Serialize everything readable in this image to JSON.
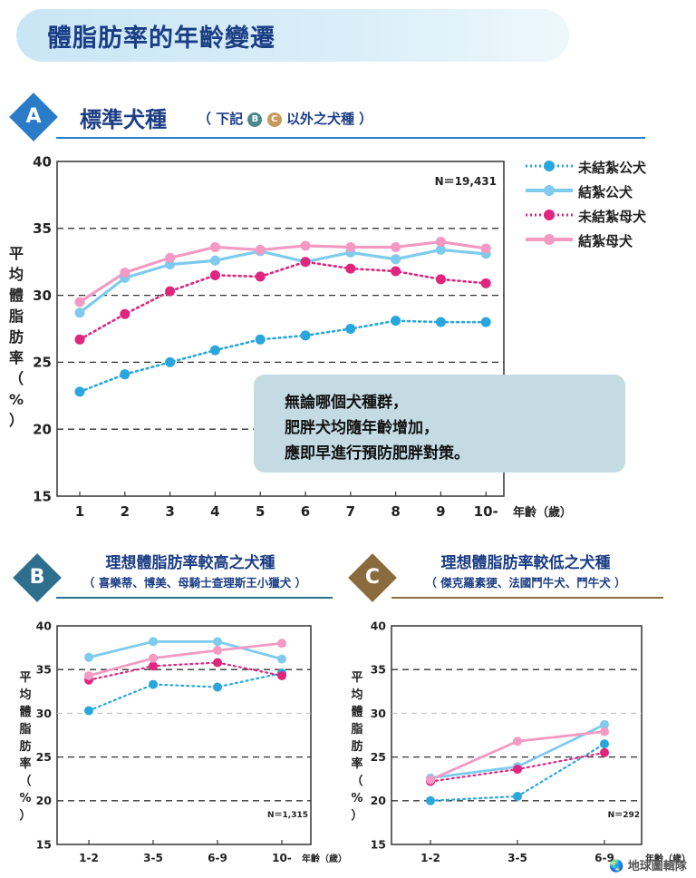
{
  "header": {
    "title": "體脂肪率的年齡變遷"
  },
  "section_a": {
    "badge": "A",
    "title": "標準犬種",
    "subtitle_prefix": "（ 下記",
    "badge_b": "B",
    "badge_c": "C",
    "subtitle_suffix": "以外之犬種 ）",
    "callout": [
      "無論哪個犬種群，",
      "肥胖犬均隨年齡增加，",
      "應即早進行預防肥胖對策。"
    ]
  },
  "section_b": {
    "badge": "B",
    "title": "理想體脂肪率較高之犬種",
    "subtitle": "（ 喜樂蒂、博美、母騎士查理斯王小獵犬 ）"
  },
  "section_c": {
    "badge": "C",
    "title": "理想體脂肪率較低之犬種",
    "subtitle": "（ 傑克羅素㹴、法國鬥牛犬、鬥牛犬 ）"
  },
  "ylabel_chars": [
    "平",
    "均",
    "體",
    "脂",
    "肪",
    "率",
    "（",
    "%",
    "）"
  ],
  "watermark": "地球圖輯隊",
  "series_styles": [
    {
      "name": "未結紮公犬",
      "color": "#2aa6de",
      "dashed": true
    },
    {
      "name": "結紮公犬",
      "color": "#7fcbee",
      "dashed": false
    },
    {
      "name": "未結紮母犬",
      "color": "#e0257f",
      "dashed": true
    },
    {
      "name": "結紮母犬",
      "color": "#f49ac2",
      "dashed": false
    }
  ],
  "chart_data": [
    {
      "type": "line",
      "id": "A",
      "categories": [
        "1",
        "2",
        "3",
        "4",
        "5",
        "6",
        "7",
        "8",
        "9",
        "10-"
      ],
      "xlabel": "年齡（歲）",
      "ylabel": "平均體脂肪率（%）",
      "ylim": [
        15,
        40
      ],
      "yticks": [
        15,
        20,
        25,
        30,
        35,
        40
      ],
      "dashed_grid": [
        20,
        25,
        30,
        35
      ],
      "annotation": "N＝19,431",
      "legend": "top-right",
      "series": [
        {
          "name": "未結紮公犬",
          "values": [
            22.8,
            24.1,
            25.0,
            25.9,
            26.7,
            27.0,
            27.5,
            28.1,
            28.0,
            28.0
          ]
        },
        {
          "name": "結紮公犬",
          "values": [
            28.7,
            31.3,
            32.3,
            32.6,
            33.3,
            32.5,
            33.2,
            32.7,
            33.4,
            33.1
          ]
        },
        {
          "name": "未結紮母犬",
          "values": [
            26.7,
            28.6,
            30.3,
            31.5,
            31.4,
            32.5,
            32.0,
            31.8,
            31.2,
            30.9
          ]
        },
        {
          "name": "結紮母犬",
          "values": [
            29.5,
            31.7,
            32.8,
            33.6,
            33.4,
            33.7,
            33.6,
            33.6,
            34.0,
            33.5
          ]
        }
      ]
    },
    {
      "type": "line",
      "id": "B",
      "categories": [
        "1-2",
        "3-5",
        "6-9",
        "10-"
      ],
      "xlabel": "年齡（歲）",
      "ylabel": "平均體脂肪率（%）",
      "ylim": [
        15,
        40
      ],
      "yticks": [
        15,
        20,
        25,
        30,
        35,
        40
      ],
      "dashed_grid": [
        20,
        25,
        35
      ],
      "light_grid": [
        30
      ],
      "annotation": "N＝1,315",
      "series": [
        {
          "name": "未結紮公犬",
          "values": [
            30.3,
            33.3,
            33.0,
            34.6
          ]
        },
        {
          "name": "結紮公犬",
          "values": [
            36.4,
            38.2,
            38.2,
            36.2
          ]
        },
        {
          "name": "未結紮母犬",
          "values": [
            33.8,
            35.4,
            35.8,
            34.3
          ]
        },
        {
          "name": "結紮母犬",
          "values": [
            34.3,
            36.3,
            37.2,
            38.0
          ]
        }
      ]
    },
    {
      "type": "line",
      "id": "C",
      "categories": [
        "1-2",
        "3-5",
        "6-9"
      ],
      "xlabel": "年齡（歲）",
      "ylabel": "平均體脂肪率（%）",
      "ylim": [
        15,
        40
      ],
      "yticks": [
        15,
        20,
        25,
        30,
        35,
        40
      ],
      "dashed_grid": [
        20,
        25,
        35
      ],
      "light_grid": [
        30
      ],
      "annotation": "N＝292",
      "series": [
        {
          "name": "未結紮公犬",
          "values": [
            20.0,
            20.5,
            26.5
          ]
        },
        {
          "name": "結紮公犬",
          "values": [
            22.6,
            23.9,
            28.7
          ]
        },
        {
          "name": "未結紮母犬",
          "values": [
            22.2,
            23.6,
            25.5
          ]
        },
        {
          "name": "結紮母犬",
          "values": [
            22.4,
            26.8,
            27.9
          ]
        }
      ]
    }
  ]
}
